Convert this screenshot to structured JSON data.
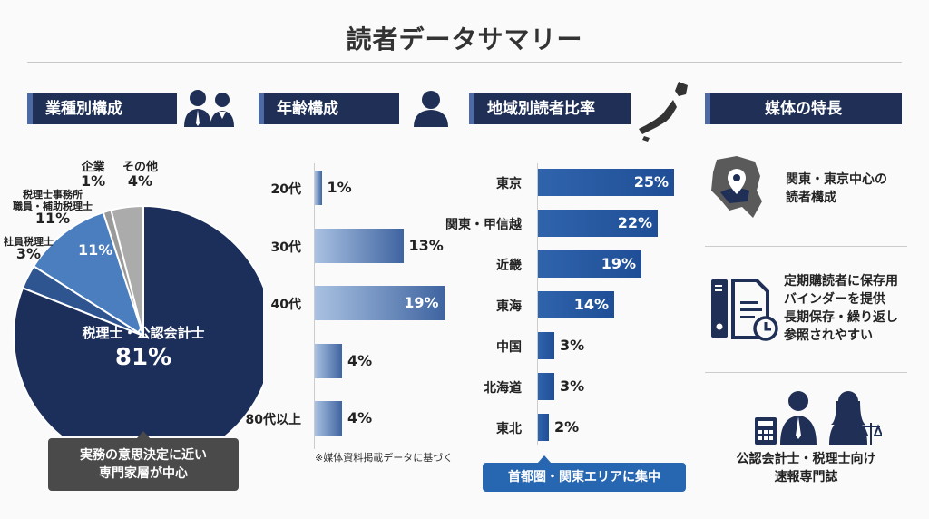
{
  "title": "読者データサマリー",
  "sections": {
    "industry": "業種別構成",
    "age": "年齢構成",
    "region": "地域別読者比率",
    "features": "媒体の特長"
  },
  "colors": {
    "navy": "#1f2f55",
    "pie_main": "#1c2e5a",
    "pie_mid": "#2f5591",
    "pie_light": "#4a7ebf",
    "gray": "#9a9a9a",
    "gray_light": "#ababab",
    "region_bar": "#1f4e96",
    "callout_gray": "#4a4a4a",
    "callout_blue": "#2766b0"
  },
  "chart_data": [
    {
      "type": "pie",
      "slices": [
        {
          "label": "税理士・公認会計士",
          "value": 81
        },
        {
          "label": "社員税理士",
          "value": 3
        },
        {
          "label": "税理士事務所職員・補助税理士",
          "label_lines": [
            "税理士事務所",
            "職員・補助税理士"
          ],
          "value": 11
        },
        {
          "label": "企業",
          "value": 1
        },
        {
          "label": "その他",
          "value": 4
        }
      ],
      "value_labels": [
        "81%",
        "3%",
        "11%",
        "1%",
        "4%"
      ],
      "inner_label_11": "11%",
      "callout": [
        "実務の意思決定に近い",
        "専門家層が中心"
      ]
    },
    {
      "type": "bar",
      "orientation": "horizontal",
      "categories": [
        "20代",
        "30代",
        "40代",
        "",
        "80代以上"
      ],
      "values": [
        1,
        13,
        19,
        4,
        4
      ],
      "value_labels": [
        "1%",
        "13%",
        "19%",
        "4%",
        "4%"
      ],
      "note": "※媒体資料掲載データに基づく"
    },
    {
      "type": "bar",
      "orientation": "horizontal",
      "categories": [
        "東京",
        "関東・甲信越",
        "近畿",
        "東海",
        "中国",
        "北海道",
        "東北"
      ],
      "values": [
        25,
        22,
        19,
        14,
        3,
        3,
        2
      ],
      "value_labels": [
        "25%",
        "22%",
        "19%",
        "14%",
        "3%",
        "3%",
        "2%"
      ],
      "callout": "首都圏・関東エリアに集中"
    }
  ],
  "features": [
    {
      "icon": "kanto-map-pin-icon",
      "lines": [
        "関東・東京中心の",
        "読者構成"
      ]
    },
    {
      "icon": "binder-document-clock-icon",
      "lines": [
        "定期購読者に保存用",
        "バインダーを提供",
        "長期保存・繰り返し",
        "参照されやすい"
      ]
    },
    {
      "icon": "accountant-lawyer-icon",
      "lines": [
        "公認会計士・税理士向け",
        "速報専門誌"
      ]
    }
  ]
}
